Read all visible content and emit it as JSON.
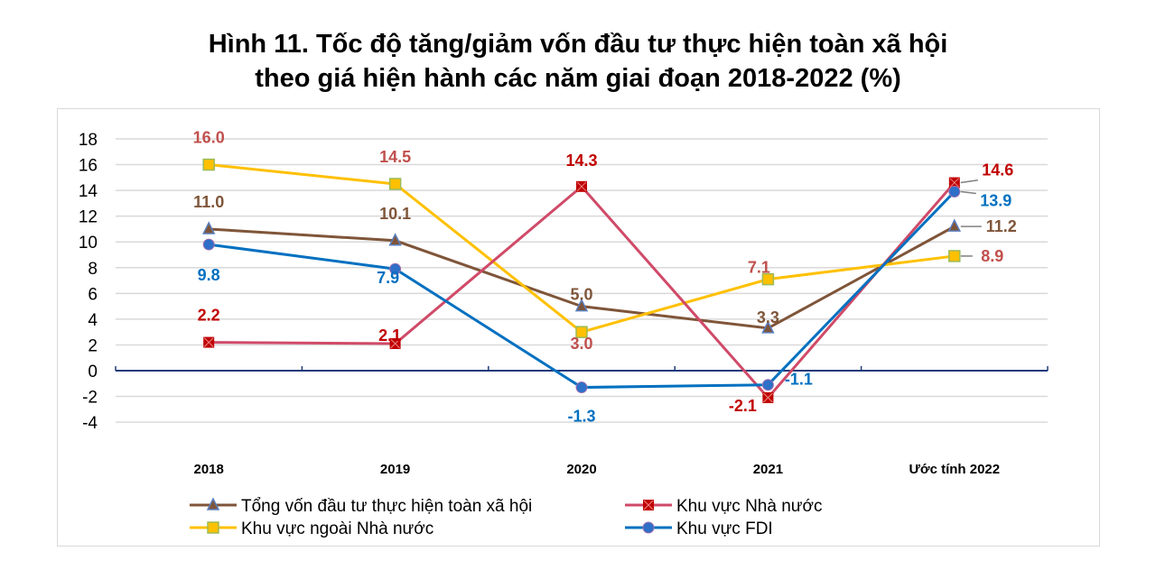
{
  "chart_data": {
    "type": "line",
    "title_line1": "Hình 11. Tốc độ tăng/giảm vốn đầu tư thực hiện toàn xã hội",
    "title_line2": "theo giá hiện hành các năm giai đoạn 2018-2022 (%)",
    "xlabel": "",
    "ylabel": "",
    "categories": [
      "2018",
      "2019",
      "2020",
      "2021",
      "Ước tính 2022"
    ],
    "ylim": [
      -4,
      18
    ],
    "yticks": [
      18,
      16,
      14,
      12,
      10,
      8,
      6,
      4,
      2,
      0,
      -2,
      -4
    ],
    "grid": true,
    "legend_position": "bottom",
    "series": [
      {
        "name": "Tổng vốn đầu tư thực hiện toàn xã hội",
        "values": [
          11.0,
          10.1,
          5.0,
          3.3,
          11.2
        ],
        "color": "#7f5539",
        "marker": "triangle",
        "marker_color": "#5b7fbf",
        "label_color": "#7f5539"
      },
      {
        "name": "Khu vực Nhà nước",
        "values": [
          2.2,
          2.1,
          14.3,
          -2.1,
          14.6
        ],
        "color": "#d04a68",
        "marker": "square-x",
        "marker_color": "#c00000",
        "label_color": "#c00000"
      },
      {
        "name": "Khu vực ngoài Nhà nước",
        "values": [
          16.0,
          14.5,
          3.0,
          7.1,
          8.9
        ],
        "color": "#ffc000",
        "marker": "square",
        "marker_color": "#ffc000",
        "label_color": "#c0504d"
      },
      {
        "name": "Khu vực FDI",
        "values": [
          9.8,
          7.9,
          -1.3,
          -1.1,
          13.9
        ],
        "color": "#0070c0",
        "marker": "circle",
        "marker_color": "#2e6fc8",
        "label_color": "#0070c0"
      }
    ]
  }
}
